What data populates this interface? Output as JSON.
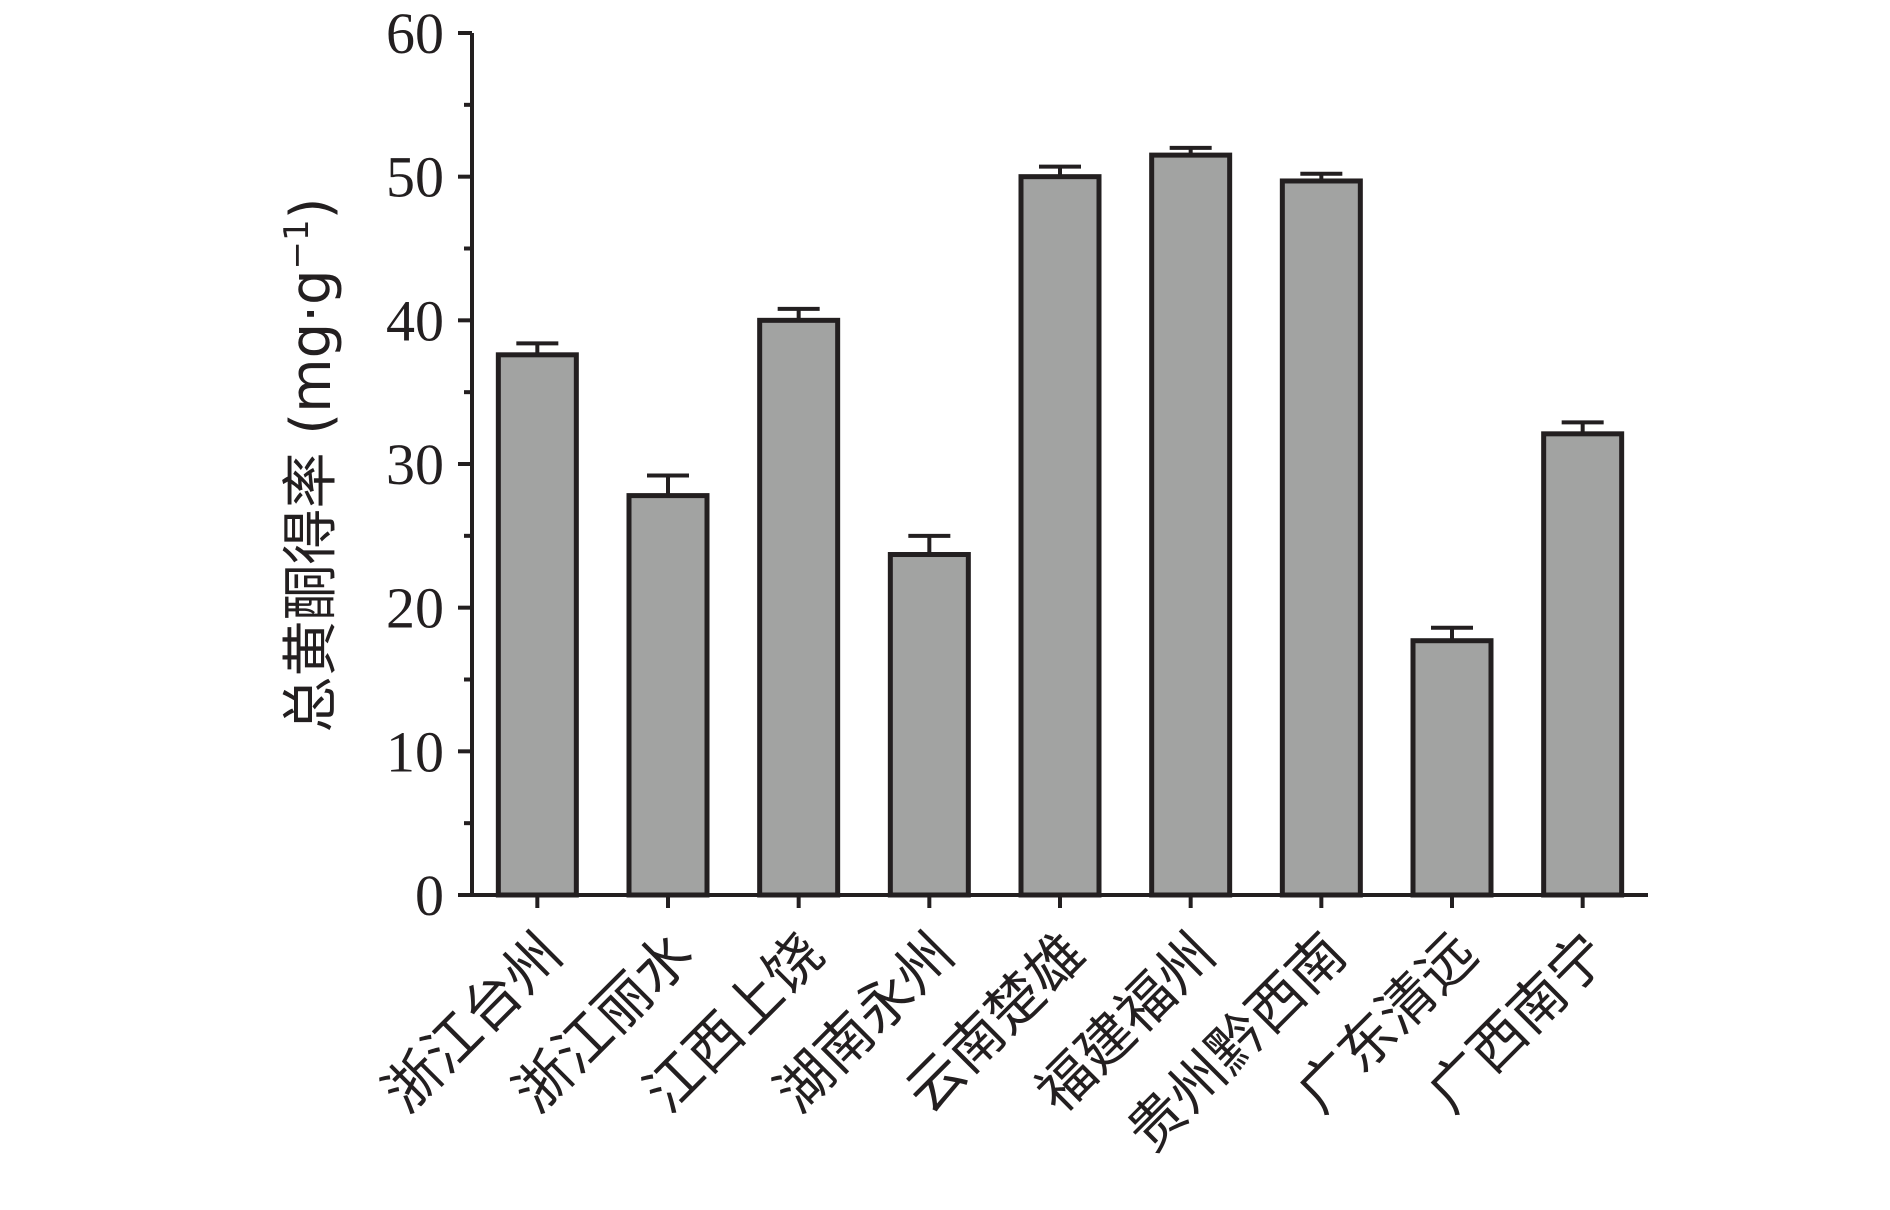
{
  "chart_data": {
    "type": "bar",
    "title": "",
    "xlabel": "",
    "ylabel": "总黄酮得率 (mg·g",
    "ylabel_sup": "−1",
    "ylabel_close": ")",
    "ylim": [
      0,
      60
    ],
    "yticks": [
      0,
      10,
      20,
      30,
      40,
      50,
      60
    ],
    "grid": false,
    "bar_color": "#a2a3a2",
    "bar_edge_color": "#231f20",
    "categories": [
      "浙江台州",
      "浙江丽水",
      "江西上饶",
      "湖南永州",
      "云南楚雄",
      "福建福州",
      "贵州黔西南",
      "广东清远",
      "广西南宁"
    ],
    "values": [
      37.6,
      27.8,
      40.0,
      23.7,
      50.0,
      51.5,
      49.7,
      17.7,
      32.1
    ],
    "errors": [
      0.8,
      1.4,
      0.8,
      1.3,
      0.7,
      0.5,
      0.5,
      0.9,
      0.8
    ]
  }
}
